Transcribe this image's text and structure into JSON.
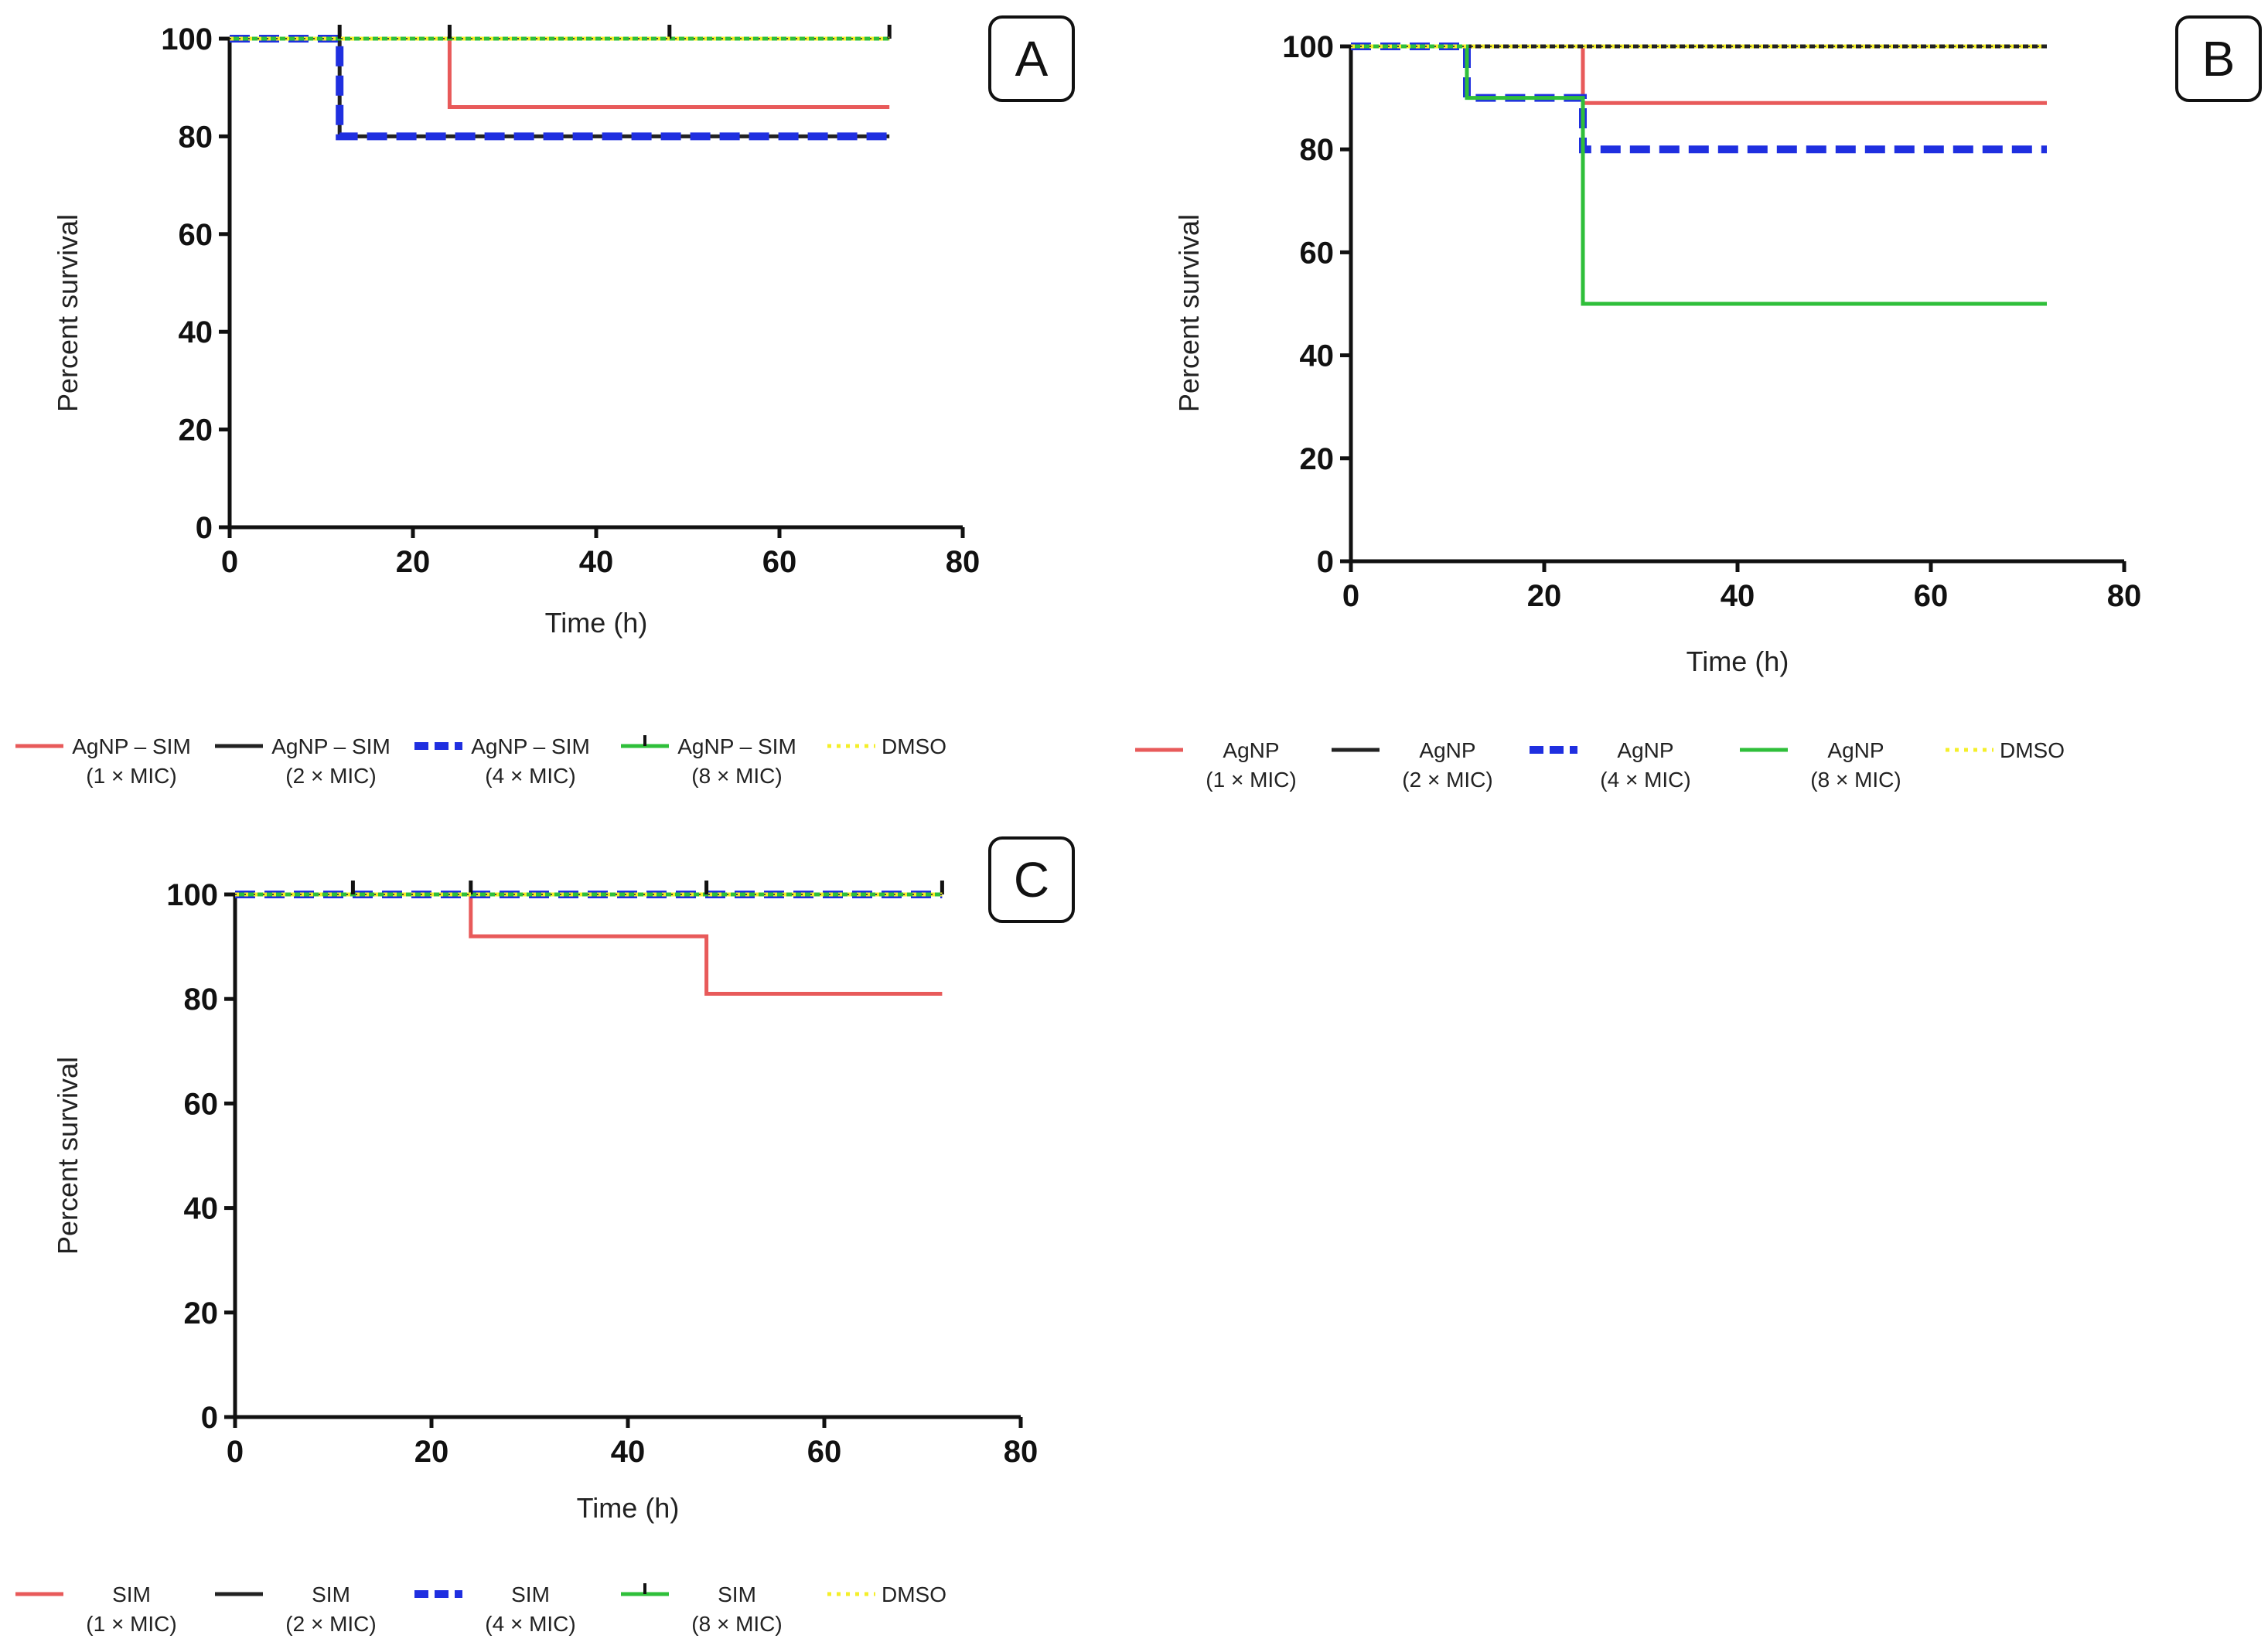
{
  "chart_data": [
    {
      "type": "line",
      "panel": "A",
      "xlabel": "Time (h)",
      "ylabel": "Percent survival",
      "xlim": [
        0,
        80
      ],
      "ylim": [
        0,
        100
      ],
      "xticks": [
        "0",
        "20",
        "40",
        "60",
        "80"
      ],
      "yticks": [
        "0",
        "20",
        "40",
        "60",
        "80",
        "100"
      ],
      "series": [
        {
          "name": "AgNP – SIM",
          "sub": "(1 × MIC)",
          "color": "#e85a5a",
          "style": "solid",
          "x": [
            0,
            24,
            24,
            72
          ],
          "y": [
            100,
            100,
            86,
            86
          ]
        },
        {
          "name": "AgNP – SIM",
          "sub": "(2 × MIC)",
          "color": "#222222",
          "style": "solid",
          "x": [
            0,
            12,
            12,
            72
          ],
          "y": [
            100,
            100,
            80,
            80
          ]
        },
        {
          "name": "AgNP – SIM",
          "sub": "(4 × MIC)",
          "color": "#1f2fe0",
          "style": "dashed",
          "x": [
            0,
            12,
            12,
            72
          ],
          "y": [
            100,
            100,
            80,
            80
          ]
        },
        {
          "name": "AgNP – SIM",
          "sub": "(8 × MIC)",
          "color": "#2fbf3a",
          "style": "solid",
          "x": [
            0,
            72
          ],
          "y": [
            100,
            100
          ],
          "censor": [
            12,
            24,
            48,
            72
          ]
        },
        {
          "name": "DMSO",
          "sub": "",
          "color": "#f4ef2a",
          "style": "dotted",
          "x": [
            0,
            72
          ],
          "y": [
            100,
            100
          ]
        }
      ]
    },
    {
      "type": "line",
      "panel": "B",
      "xlabel": "Time (h)",
      "ylabel": "Percent survival",
      "xlim": [
        0,
        80
      ],
      "ylim": [
        0,
        100
      ],
      "xticks": [
        "0",
        "20",
        "40",
        "60",
        "80"
      ],
      "yticks": [
        "0",
        "20",
        "40",
        "60",
        "80",
        "100"
      ],
      "series": [
        {
          "name": "AgNP",
          "sub": "(1 × MIC)",
          "color": "#e85a5a",
          "style": "solid",
          "x": [
            0,
            24,
            24,
            72
          ],
          "y": [
            100,
            100,
            89,
            89
          ]
        },
        {
          "name": "AgNP",
          "sub": "(2 × MIC)",
          "color": "#222222",
          "style": "solid",
          "x": [
            0,
            72
          ],
          "y": [
            100,
            100
          ]
        },
        {
          "name": "AgNP",
          "sub": "(4 × MIC)",
          "color": "#1f2fe0",
          "style": "dashed",
          "x": [
            0,
            12,
            12,
            24,
            24,
            72
          ],
          "y": [
            100,
            100,
            90,
            90,
            80,
            80
          ]
        },
        {
          "name": "AgNP",
          "sub": "(8 × MIC)",
          "color": "#2fbf3a",
          "style": "solid",
          "x": [
            0,
            12,
            12,
            24,
            24,
            72
          ],
          "y": [
            100,
            100,
            90,
            90,
            50,
            50
          ]
        },
        {
          "name": "DMSO",
          "sub": "",
          "color": "#f4ef2a",
          "style": "dotted",
          "x": [
            0,
            72
          ],
          "y": [
            100,
            100
          ]
        }
      ]
    },
    {
      "type": "line",
      "panel": "C",
      "xlabel": "Time (h)",
      "ylabel": "Percent survival",
      "xlim": [
        0,
        80
      ],
      "ylim": [
        0,
        100
      ],
      "xticks": [
        "0",
        "20",
        "40",
        "60",
        "80"
      ],
      "yticks": [
        "0",
        "20",
        "40",
        "60",
        "80",
        "100"
      ],
      "series": [
        {
          "name": "SIM",
          "sub": "(1 × MIC)",
          "color": "#e85a5a",
          "style": "solid",
          "x": [
            0,
            24,
            24,
            48,
            48,
            72
          ],
          "y": [
            100,
            100,
            92,
            92,
            81,
            81
          ]
        },
        {
          "name": "SIM",
          "sub": "(2 × MIC)",
          "color": "#222222",
          "style": "solid",
          "x": [
            0,
            72
          ],
          "y": [
            100,
            100
          ]
        },
        {
          "name": "SIM",
          "sub": "(4 × MIC)",
          "color": "#1f2fe0",
          "style": "dashed",
          "x": [
            0,
            72
          ],
          "y": [
            100,
            100
          ]
        },
        {
          "name": "SIM",
          "sub": "(8 × MIC)",
          "color": "#2fbf3a",
          "style": "solid",
          "x": [
            0,
            72
          ],
          "y": [
            100,
            100
          ],
          "censor": [
            12,
            24,
            48,
            72
          ]
        },
        {
          "name": "DMSO",
          "sub": "",
          "color": "#f4ef2a",
          "style": "dotted",
          "x": [
            0,
            72
          ],
          "y": [
            100,
            100
          ]
        }
      ]
    }
  ]
}
